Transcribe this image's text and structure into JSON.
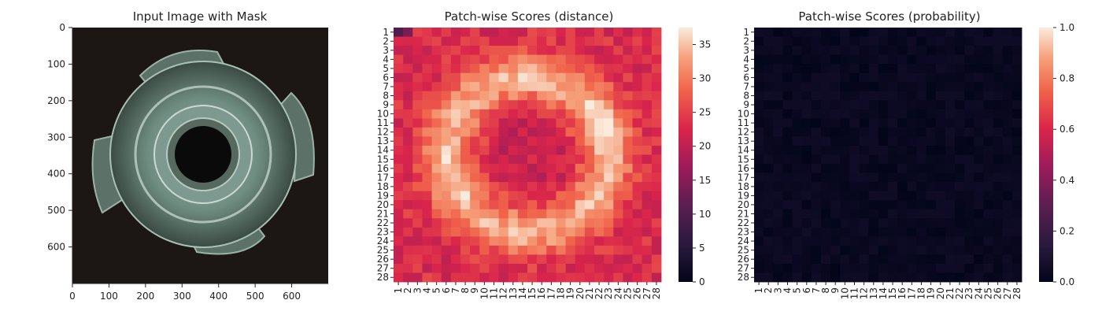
{
  "chart_data": [
    {
      "type": "image",
      "title": "Input Image with Mask",
      "xticks": [
        0,
        100,
        200,
        300,
        400,
        500,
        600
      ],
      "yticks": [
        0,
        100,
        200,
        300,
        400,
        500,
        600
      ],
      "xlim": [
        0,
        700
      ],
      "ylim": [
        700,
        0
      ],
      "grid": false,
      "image_subject": "metal tee nut with four prongs on dark background"
    },
    {
      "type": "heatmap",
      "title": "Patch-wise Scores (distance)",
      "rows": 28,
      "cols": 28,
      "xticklabels": [
        "1",
        "2",
        "3",
        "4",
        "5",
        "6",
        "7",
        "8",
        "9",
        "10",
        "11",
        "12",
        "13",
        "14",
        "15",
        "16",
        "17",
        "18",
        "19",
        "20",
        "21",
        "22",
        "23",
        "24",
        "25",
        "26",
        "27",
        "28"
      ],
      "yticklabels": [
        "1",
        "2",
        "3",
        "4",
        "5",
        "6",
        "7",
        "8",
        "9",
        "10",
        "11",
        "12",
        "13",
        "14",
        "15",
        "16",
        "17",
        "18",
        "19",
        "20",
        "21",
        "22",
        "23",
        "24",
        "25",
        "26",
        "27",
        "28"
      ],
      "colorbar_ticks": [
        "0",
        "5",
        "10",
        "15",
        "20",
        "25",
        "30",
        "35"
      ],
      "vmin": 0,
      "vmax": 37.5,
      "colormap": "rocket",
      "value_range_estimated": [
        8,
        37
      ],
      "pattern": "low values (~20-24) over background border and center hole, high values (~32-37) on the ring and prongs",
      "legend": "colorbar-right"
    },
    {
      "type": "heatmap",
      "title": "Patch-wise Scores (probability)",
      "rows": 28,
      "cols": 28,
      "xticklabels": [
        "1",
        "2",
        "3",
        "4",
        "5",
        "6",
        "7",
        "8",
        "9",
        "10",
        "11",
        "12",
        "13",
        "14",
        "15",
        "16",
        "17",
        "18",
        "19",
        "20",
        "21",
        "22",
        "23",
        "24",
        "25",
        "26",
        "27",
        "28"
      ],
      "yticklabels": [
        "1",
        "2",
        "3",
        "4",
        "5",
        "6",
        "7",
        "8",
        "9",
        "10",
        "11",
        "12",
        "13",
        "14",
        "15",
        "16",
        "17",
        "18",
        "19",
        "20",
        "21",
        "22",
        "23",
        "24",
        "25",
        "26",
        "27",
        "28"
      ],
      "colorbar_ticks": [
        "0.0",
        "0.2",
        "0.4",
        "0.6",
        "0.8",
        "1.0"
      ],
      "vmin": 0,
      "vmax": 1,
      "colormap": "rocket",
      "value_range_estimated": [
        0,
        0.06
      ],
      "pattern": "nearly all values close to 0.0",
      "legend": "colorbar-right"
    }
  ]
}
